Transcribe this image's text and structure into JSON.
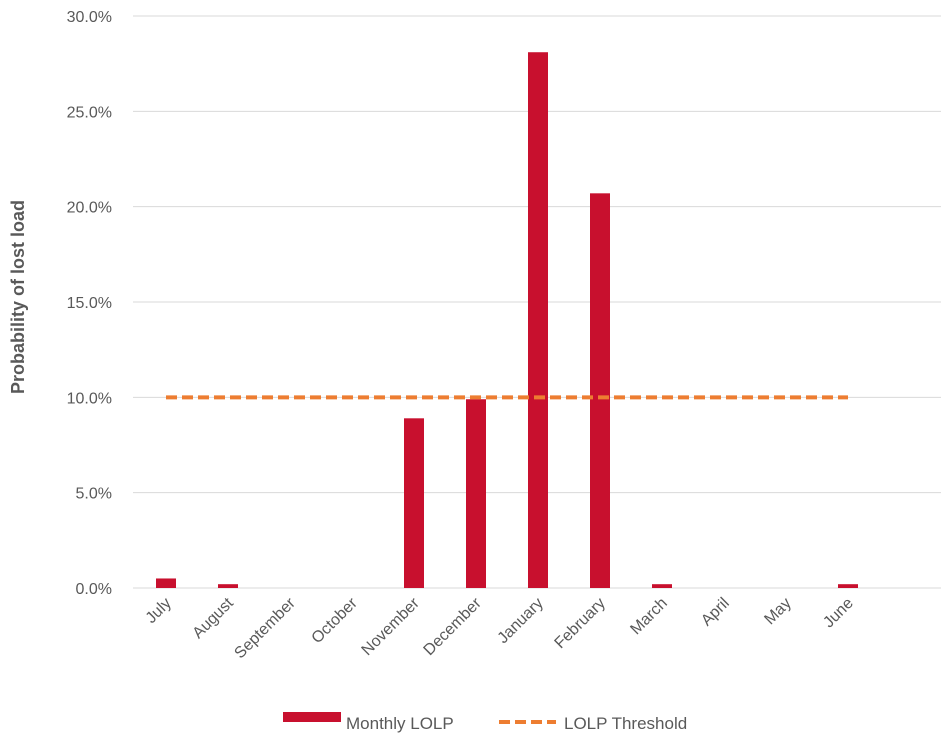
{
  "chart_data": {
    "type": "bar",
    "title": "",
    "xlabel": "",
    "ylabel": "Probability of lost load",
    "categories": [
      "July",
      "August",
      "September",
      "October",
      "November",
      "December",
      "January",
      "February",
      "March",
      "April",
      "May",
      "June"
    ],
    "series": [
      {
        "name": "Monthly LOLP",
        "type": "bar",
        "color": "#c8102e",
        "values": [
          0.5,
          0.2,
          0.0,
          0.0,
          8.9,
          9.9,
          28.1,
          20.7,
          0.2,
          0.0,
          0.0,
          0.2
        ]
      },
      {
        "name": "LOLP Threshold",
        "type": "line",
        "style": "dashed",
        "color": "#ed7d31",
        "values": [
          10,
          10,
          10,
          10,
          10,
          10,
          10,
          10,
          10,
          10,
          10,
          10
        ]
      }
    ],
    "ylim": [
      0,
      30
    ],
    "yticks": [
      0,
      5,
      10,
      15,
      20,
      25,
      30
    ],
    "ytick_labels": [
      "0.0%",
      "5.0%",
      "10.0%",
      "15.0%",
      "20.0%",
      "25.0%",
      "30.0%"
    ],
    "grid": true,
    "legend_position": "bottom"
  }
}
